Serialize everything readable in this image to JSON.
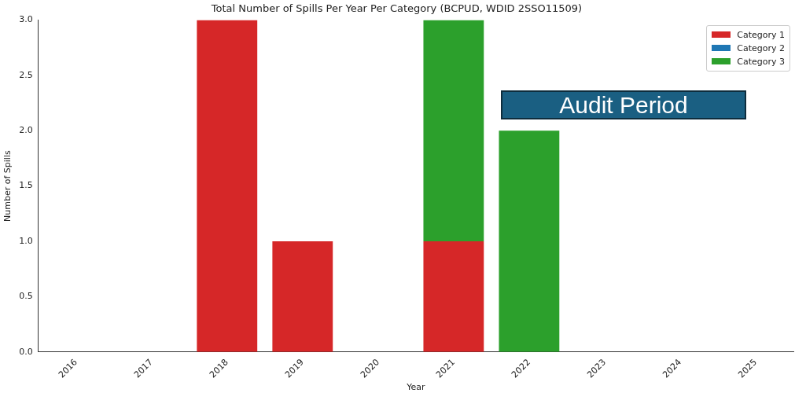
{
  "chart_data": {
    "type": "bar",
    "title": "Total Number of Spills Per Year Per Category (BCPUD, WDID 2SSO11509)",
    "xlabel": "Year",
    "ylabel": "Number of Spills",
    "categories": [
      "2016",
      "2017",
      "2018",
      "2019",
      "2020",
      "2021",
      "2022",
      "2023",
      "2024",
      "2025"
    ],
    "stacked": true,
    "series": [
      {
        "name": "Category 1",
        "color": "#d62728",
        "values": [
          0,
          0,
          3,
          1,
          0,
          1,
          0,
          0,
          0,
          0
        ]
      },
      {
        "name": "Category 2",
        "color": "#1f77b4",
        "values": [
          0,
          0,
          0,
          0,
          0,
          0,
          0,
          0,
          0,
          0
        ]
      },
      {
        "name": "Category 3",
        "color": "#2ca02c",
        "values": [
          0,
          0,
          0,
          0,
          0,
          2,
          2,
          0,
          0,
          0
        ]
      }
    ],
    "ylim": [
      0,
      3
    ],
    "yticks": [
      {
        "value": 0,
        "label": "0.0"
      },
      {
        "value": 0.5,
        "label": "0.5"
      },
      {
        "value": 1,
        "label": "1.0"
      },
      {
        "value": 1.5,
        "label": "1.5"
      },
      {
        "value": 2,
        "label": "2.0"
      },
      {
        "value": 2.5,
        "label": "2.5"
      },
      {
        "value": 3,
        "label": "3.0"
      }
    ],
    "grid": false,
    "legend": "top right",
    "annotations": [
      "Audit Period"
    ]
  }
}
